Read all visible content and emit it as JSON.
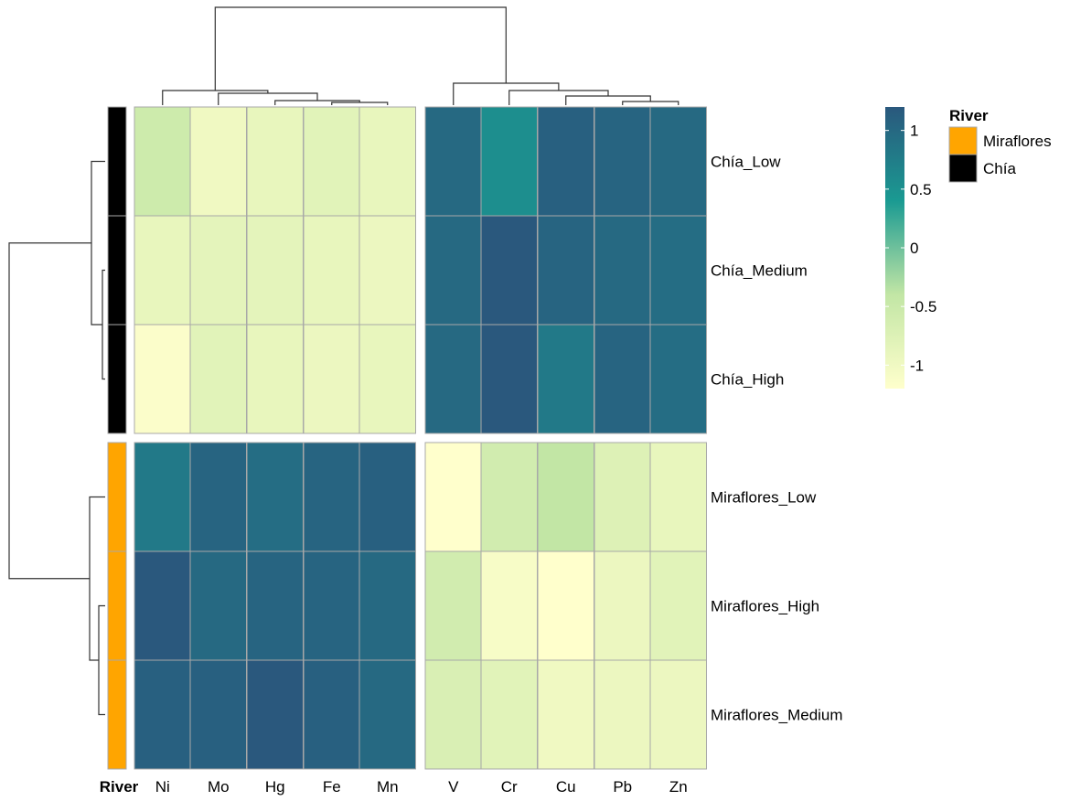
{
  "chart_data": {
    "type": "heatmap",
    "title": "",
    "columns": [
      "Ni",
      "Mo",
      "Hg",
      "Fe",
      "Mn",
      "V",
      "Cr",
      "Cu",
      "Pb",
      "Zn"
    ],
    "rows": [
      "Chía_Low",
      "Chía_Medium",
      "Chía_High",
      "Miraflores_Low",
      "Miraflores_High",
      "Miraflores_Medium"
    ],
    "row_groups": [
      "Chía",
      "Chía",
      "Chía",
      "Miraflores",
      "Miraflores",
      "Miraflores"
    ],
    "values": [
      [
        -0.55,
        -1.0,
        -0.9,
        -0.8,
        -0.9,
        1.0,
        0.55,
        1.1,
        1.05,
        1.0
      ],
      [
        -0.9,
        -0.85,
        -0.85,
        -0.9,
        -0.95,
        1.0,
        1.25,
        1.05,
        1.0,
        0.95
      ],
      [
        -1.15,
        -0.8,
        -0.9,
        -0.95,
        -0.9,
        1.0,
        1.3,
        0.8,
        1.05,
        0.95
      ],
      [
        0.8,
        1.05,
        0.95,
        1.05,
        1.1,
        -1.3,
        -0.6,
        -0.4,
        -0.75,
        -0.9
      ],
      [
        1.25,
        1.0,
        1.05,
        1.05,
        1.0,
        -0.6,
        -1.1,
        -1.2,
        -0.95,
        -0.8
      ],
      [
        1.1,
        1.1,
        1.2,
        1.1,
        1.0,
        -0.7,
        -0.8,
        -1.0,
        -0.95,
        -0.95
      ]
    ],
    "color_scale": {
      "min": -1.2,
      "max": 1.2,
      "colors": [
        "#ffffcc",
        "#c2e6a5",
        "#1a9a92",
        "#2a587d"
      ],
      "ticks": [
        1,
        0.5,
        0,
        -0.5,
        -1
      ],
      "tick_labels": [
        "1",
        "0.5",
        "0",
        "-0.5",
        "-1"
      ]
    },
    "annotation": {
      "title": "River",
      "axis_label": "River",
      "legend_entries": [
        {
          "label": "Miraflores",
          "color": "#ffa500"
        },
        {
          "label": "Chía",
          "color": "#000000"
        }
      ]
    }
  }
}
